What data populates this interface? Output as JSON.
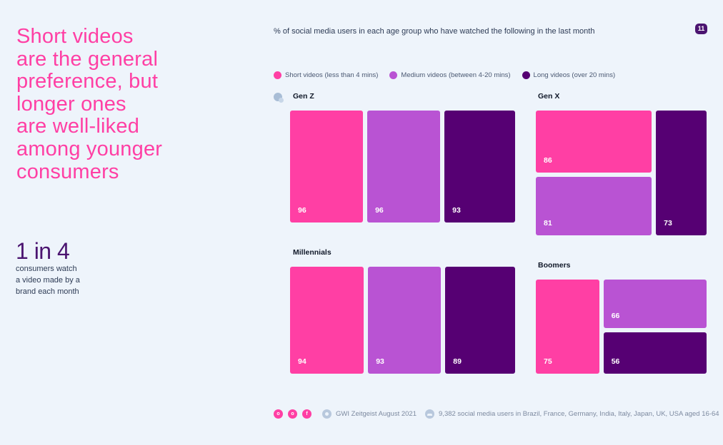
{
  "headline": "Short videos\nare the general\npreference, but\nlonger ones\nare well-liked\namong younger\nconsumers",
  "stat": {
    "value": "1 in 4",
    "text": "consumers  watch\na video made by a\nbrand each month"
  },
  "page_number": "11",
  "colors": {
    "short": "#ff3fa4",
    "medium": "#b953d3",
    "long": "#560073"
  },
  "footer": {
    "social": [
      "o",
      "o",
      "f"
    ],
    "source": "GWI Zeitgeist August 2021",
    "sample": "9,382 social media users in Brazil, France, Germany, India, Italy, Japan, UK, USA aged 16-64"
  },
  "chart_data": {
    "type": "treemap",
    "title": "% of social media users in each age group who have watched the following in the last month",
    "legend": [
      "Short videos (less than 4 mins)",
      "Medium videos (between 4-20 mins)",
      "Long videos (over 20 mins)"
    ],
    "categories": [
      "Short videos (less than 4 mins)",
      "Medium videos (between 4-20 mins)",
      "Long videos (over 20 mins)"
    ],
    "groups": [
      {
        "name": "Gen Z",
        "values": [
          96,
          96,
          93
        ]
      },
      {
        "name": "Gen X",
        "values": [
          86,
          81,
          73
        ]
      },
      {
        "name": "Millennials",
        "values": [
          94,
          93,
          89
        ]
      },
      {
        "name": "Boomers",
        "values": [
          75,
          66,
          56
        ]
      }
    ]
  }
}
